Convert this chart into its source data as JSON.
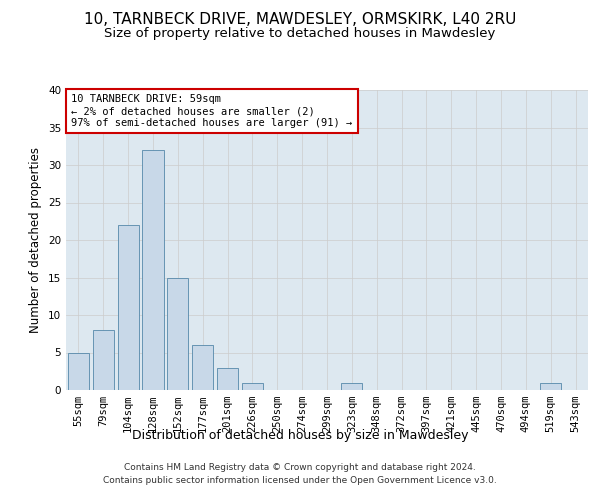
{
  "title1": "10, TARNBECK DRIVE, MAWDESLEY, ORMSKIRK, L40 2RU",
  "title2": "Size of property relative to detached houses in Mawdesley",
  "xlabel": "Distribution of detached houses by size in Mawdesley",
  "ylabel": "Number of detached properties",
  "categories": [
    "55sqm",
    "79sqm",
    "104sqm",
    "128sqm",
    "152sqm",
    "177sqm",
    "201sqm",
    "226sqm",
    "250sqm",
    "274sqm",
    "299sqm",
    "323sqm",
    "348sqm",
    "372sqm",
    "397sqm",
    "421sqm",
    "445sqm",
    "470sqm",
    "494sqm",
    "519sqm",
    "543sqm"
  ],
  "values": [
    5,
    8,
    22,
    32,
    15,
    6,
    3,
    1,
    0,
    0,
    0,
    1,
    0,
    0,
    0,
    0,
    0,
    0,
    0,
    1,
    0
  ],
  "bar_color": "#c8d8e8",
  "bar_edge_color": "#5588aa",
  "annotation_lines": [
    "10 TARNBECK DRIVE: 59sqm",
    "← 2% of detached houses are smaller (2)",
    "97% of semi-detached houses are larger (91) →"
  ],
  "annotation_box_color": "#ffffff",
  "annotation_box_edge": "#cc0000",
  "ylim": [
    0,
    40
  ],
  "yticks": [
    0,
    5,
    10,
    15,
    20,
    25,
    30,
    35,
    40
  ],
  "grid_color": "#cccccc",
  "plot_bg_color": "#dde8f0",
  "footer_line1": "Contains HM Land Registry data © Crown copyright and database right 2024.",
  "footer_line2": "Contains public sector information licensed under the Open Government Licence v3.0.",
  "title1_fontsize": 11,
  "title2_fontsize": 9.5,
  "xlabel_fontsize": 9,
  "ylabel_fontsize": 8.5,
  "tick_fontsize": 7.5,
  "footer_fontsize": 6.5,
  "annotation_fontsize": 7.5
}
